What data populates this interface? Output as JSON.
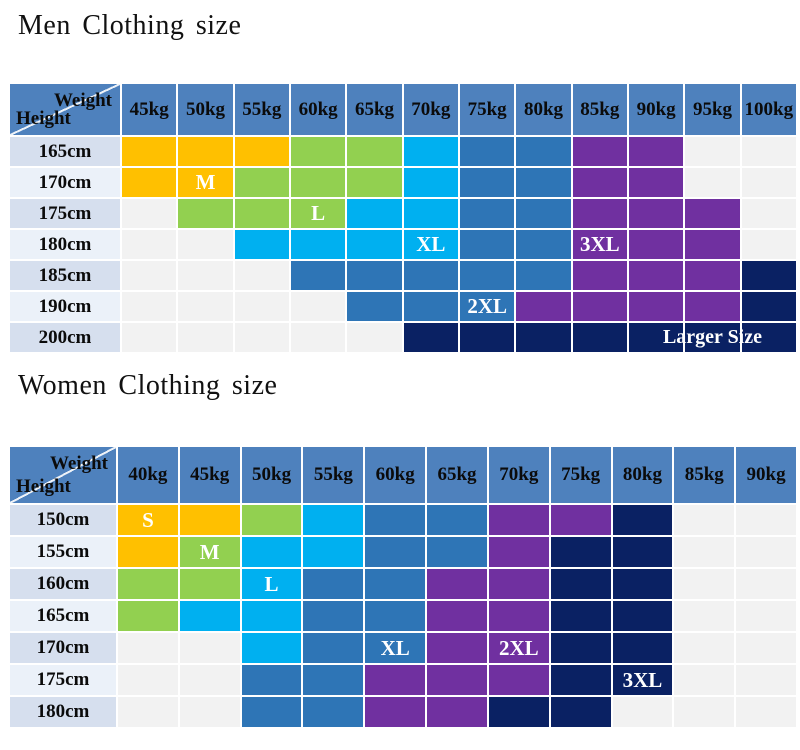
{
  "chart_data": [
    {
      "type": "heatmap",
      "title": "Men Clothing size",
      "corner": {
        "top_right": "Weight",
        "bottom_left": "Height"
      },
      "x_axis_unit": "kg",
      "y_axis_unit": "cm",
      "x_categories": [
        "45kg",
        "50kg",
        "55kg",
        "60kg",
        "65kg",
        "70kg",
        "75kg",
        "80kg",
        "85kg",
        "90kg",
        "95kg",
        "100kg"
      ],
      "y_categories": [
        "165cm",
        "170cm",
        "175cm",
        "180cm",
        "185cm",
        "190cm",
        "200cm"
      ],
      "cell_sizes": [
        [
          "M",
          "M",
          "M",
          "L",
          "L",
          "XL",
          "2XL",
          "2XL",
          "3XL",
          "3XL",
          "",
          ""
        ],
        [
          "M",
          "M",
          "L",
          "L",
          "L",
          "XL",
          "2XL",
          "2XL",
          "3XL",
          "3XL",
          "",
          ""
        ],
        [
          "",
          "L",
          "L",
          "L",
          "XL",
          "XL",
          "2XL",
          "2XL",
          "3XL",
          "3XL",
          "3XL",
          ""
        ],
        [
          "",
          "",
          "XL",
          "XL",
          "XL",
          "XL",
          "2XL",
          "2XL",
          "3XL",
          "3XL",
          "3XL",
          ""
        ],
        [
          "",
          "",
          "",
          "2XL",
          "2XL",
          "2XL",
          "2XL",
          "2XL",
          "3XL",
          "3XL",
          "3XL",
          "Larger Size"
        ],
        [
          "",
          "",
          "",
          "",
          "2XL",
          "2XL",
          "2XL",
          "3XL",
          "3XL",
          "3XL",
          "3XL",
          "Larger Size"
        ],
        [
          "",
          "",
          "",
          "",
          "",
          "Larger Size",
          "Larger Size",
          "Larger Size",
          "Larger Size",
          "Larger Size",
          "Larger Size",
          "Larger Size"
        ]
      ],
      "size_colors": {
        "M": "#FFC000",
        "L": "#92D050",
        "XL": "#00B0F0",
        "2XL": "#2E75B6",
        "3XL": "#7030A0",
        "Larger Size": "#0A2163"
      },
      "visible_size_labels": [
        {
          "height": "170cm",
          "weight": "50kg",
          "text": "M"
        },
        {
          "height": "175cm",
          "weight": "60kg",
          "text": "L"
        },
        {
          "height": "180cm",
          "weight": "70kg",
          "text": "XL"
        },
        {
          "height": "180cm",
          "weight": "85kg",
          "text": "3XL"
        },
        {
          "height": "190cm",
          "weight": "75kg",
          "text": "2XL"
        }
      ],
      "row_overlay_label": {
        "text": "Larger Size",
        "row": "200cm",
        "position": "bottom-right"
      }
    },
    {
      "type": "heatmap",
      "title": "Women Clothing size",
      "corner": {
        "top_right": "Weight",
        "bottom_left": "Height"
      },
      "x_axis_unit": "kg",
      "y_axis_unit": "cm",
      "x_categories": [
        "40kg",
        "45kg",
        "50kg",
        "55kg",
        "60kg",
        "65kg",
        "70kg",
        "75kg",
        "80kg",
        "85kg",
        "90kg"
      ],
      "y_categories": [
        "150cm",
        "155cm",
        "160cm",
        "165cm",
        "170cm",
        "175cm",
        "180cm"
      ],
      "cell_sizes": [
        [
          "S",
          "S",
          "M",
          "L",
          "XL",
          "XL",
          "2XL",
          "2XL",
          "3XL",
          "",
          ""
        ],
        [
          "S",
          "M",
          "L",
          "L",
          "XL",
          "XL",
          "2XL",
          "3XL",
          "3XL",
          "",
          ""
        ],
        [
          "M",
          "M",
          "L",
          "XL",
          "XL",
          "2XL",
          "2XL",
          "3XL",
          "3XL",
          "",
          ""
        ],
        [
          "M",
          "L",
          "L",
          "XL",
          "XL",
          "2XL",
          "2XL",
          "3XL",
          "3XL",
          "",
          ""
        ],
        [
          "",
          "",
          "L",
          "XL",
          "XL",
          "2XL",
          "2XL",
          "3XL",
          "3XL",
          "",
          ""
        ],
        [
          "",
          "",
          "XL",
          "XL",
          "2XL",
          "2XL",
          "2XL",
          "3XL",
          "3XL",
          "",
          ""
        ],
        [
          "",
          "",
          "XL",
          "XL",
          "2XL",
          "2XL",
          "3XL",
          "3XL",
          "",
          "",
          ""
        ]
      ],
      "size_colors": {
        "S": "#FFC000",
        "M": "#92D050",
        "L": "#00B0F0",
        "XL": "#2E75B6",
        "2XL": "#7030A0",
        "3XL": "#0A2163"
      },
      "visible_size_labels": [
        {
          "height": "150cm",
          "weight": "40kg",
          "text": "S"
        },
        {
          "height": "155cm",
          "weight": "45kg",
          "text": "M"
        },
        {
          "height": "160cm",
          "weight": "50kg",
          "text": "L"
        },
        {
          "height": "170cm",
          "weight": "60kg",
          "text": "XL"
        },
        {
          "height": "170cm",
          "weight": "70kg",
          "text": "2XL"
        },
        {
          "height": "175cm",
          "weight": "80kg",
          "text": "3XL"
        }
      ],
      "row_overlay_label": null
    }
  ],
  "colors": {
    "header_bg": "#4E81BD",
    "row_label_dark": "#D6DFEE",
    "row_label_light": "#EBF1F9",
    "empty_cell": "#F2F2F2",
    "gridline": "#FFFFFF",
    "title_text": "#111111",
    "header_text": "#0B0B0B",
    "size_label_text": "#FFFFFF"
  }
}
